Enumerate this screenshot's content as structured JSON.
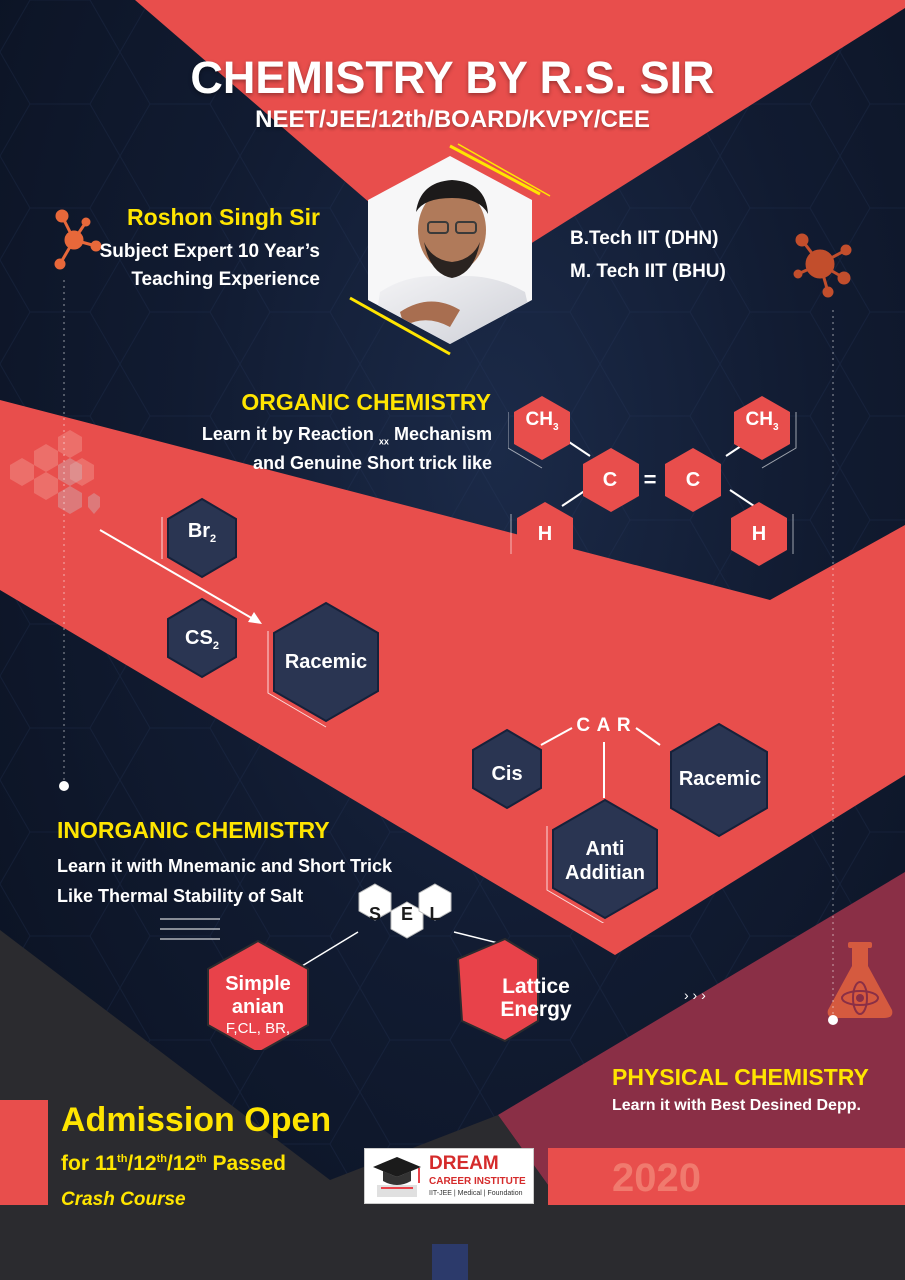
{
  "header": {
    "title": "CHEMISTRY BY R.S. SIR",
    "subtitle": "NEET/JEE/12th/BOARD/KVPY/CEE"
  },
  "teacher": {
    "name": "Roshon Singh Sir",
    "line1": "Subject Expert 10 Year’s",
    "line2": "Teaching Experience",
    "degree1": "B.Tech IIT (DHN)",
    "degree2": "M. Tech IIT (BHU)"
  },
  "organic": {
    "heading": "ORGANIC CHEMISTRY",
    "line1_a": "Learn it by Reaction",
    "line1_sub": "xx",
    "line1_b": "Mechanism",
    "line2": "and Genuine Short trick like",
    "molecule": {
      "ch": "CH",
      "ch_sub": "3",
      "c": "C",
      "equals": "=",
      "h": "H"
    },
    "reagent1": "Br",
    "reagent1_sub": "2",
    "reagent2": "CS",
    "reagent2_sub": "2",
    "product": "Racemic",
    "car_title": "C A R",
    "car_items": [
      "Cis",
      "Racemic",
      "Anti",
      "Additian"
    ]
  },
  "inorganic": {
    "heading": "INORGANIC CHEMISTRY",
    "line1": "Learn it with Mnemanic and Short Trick",
    "line2": "Like Thermal Stability of Salt",
    "sel_letters": [
      "S",
      "E",
      "L"
    ],
    "simple_l1": "Simple",
    "simple_l2": "anian",
    "simple_l3": "F,CL, BR,",
    "lattice_l1": "Lattice",
    "lattice_l2": "Energy"
  },
  "physical": {
    "heading": "PHYSICAL CHEMISTRY",
    "line1": "Learn it with Best Desined Depp."
  },
  "admission": {
    "title": "Admission Open",
    "for_prefix": "for 11",
    "sup1": "th",
    "mid1": "/12",
    "sup2": "th",
    "mid2": "/12",
    "sup3": "th",
    "suffix": " Passed",
    "course": "Crash Course"
  },
  "logo": {
    "name": "DREAM",
    "sub": "CAREER INSTITUTE",
    "tagline": "IIT-JEE | Medical | Foundation"
  },
  "year": "2020",
  "colors": {
    "coral": "#e84e4c",
    "navy": "#16213a",
    "yellow": "#ffe500",
    "maroon": "#8a2f46"
  }
}
